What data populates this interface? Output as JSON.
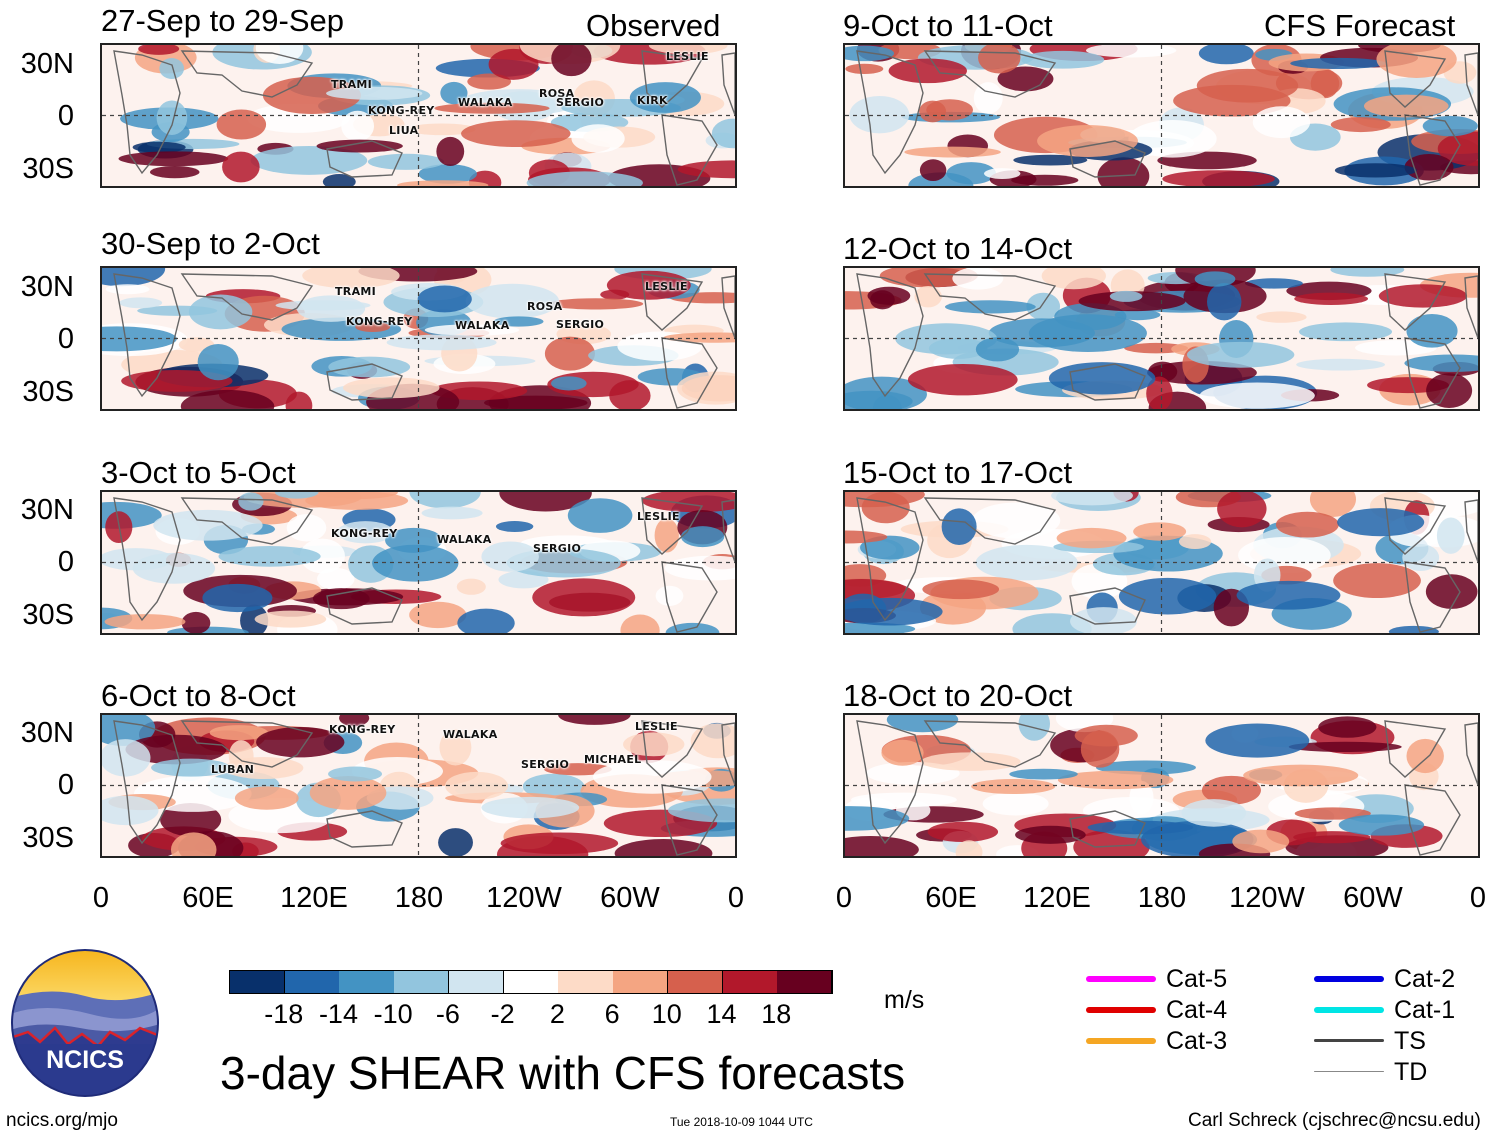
{
  "headers": {
    "observed": "Observed",
    "forecast": "CFS Forecast"
  },
  "left_panels": [
    {
      "title": "27-Sep to 29-Sep",
      "storms": [
        "TRAMI",
        "KONG-REY",
        "LIUA",
        "WALAKA",
        "ROSA",
        "SERGIO",
        "KIRK",
        "LESLIE"
      ]
    },
    {
      "title": "30-Sep to 2-Oct",
      "storms": [
        "TRAMI",
        "KONG-REY",
        "WALAKA",
        "ROSA",
        "SERGIO",
        "LESLIE"
      ]
    },
    {
      "title": "3-Oct to 5-Oct",
      "storms": [
        "KONG-REY",
        "WALAKA",
        "SERGIO",
        "LESLIE"
      ]
    },
    {
      "title": "6-Oct to 8-Oct",
      "storms": [
        "KONG-REY",
        "WALAKA",
        "LUBAN",
        "SERGIO",
        "MICHAEL",
        "LESLIE"
      ]
    }
  ],
  "right_panels": [
    {
      "title": "9-Oct to 11-Oct"
    },
    {
      "title": "12-Oct to 14-Oct"
    },
    {
      "title": "15-Oct to 17-Oct"
    },
    {
      "title": "18-Oct to 20-Oct"
    }
  ],
  "lat_labels": [
    "30N",
    "0",
    "30S"
  ],
  "lon_labels": [
    "0",
    "60E",
    "120E",
    "180",
    "120W",
    "60W",
    "0"
  ],
  "colorbar": {
    "colors": [
      "#08306b",
      "#2166ac",
      "#4393c3",
      "#92c5de",
      "#d1e5f0",
      "#ffffff",
      "#fddbc7",
      "#f4a582",
      "#d6604d",
      "#b2182b",
      "#67001f"
    ],
    "labels": [
      "-18",
      "-14",
      "-10",
      "-6",
      "-2",
      "2",
      "6",
      "10",
      "14",
      "18"
    ],
    "units": "m/s"
  },
  "legend": [
    {
      "label": "Cat-5",
      "color": "#ff00ff"
    },
    {
      "label": "Cat-4",
      "color": "#e00000"
    },
    {
      "label": "Cat-3",
      "color": "#f5a623"
    },
    {
      "label": "Cat-2",
      "color": "#0000e0"
    },
    {
      "label": "Cat-1",
      "color": "#00e5e5"
    },
    {
      "label": "TS",
      "color": "#444444"
    },
    {
      "label": "TD",
      "color": "#888888"
    }
  ],
  "main_title": "3-day SHEAR with CFS forecasts",
  "logo_text": "NCICS",
  "footer": {
    "left": "ncics.org/mjo",
    "center": "Tue 2018-10-09 1044 UTC",
    "right": "Carl Schreck (cjschrec@ncsu.edu)"
  }
}
